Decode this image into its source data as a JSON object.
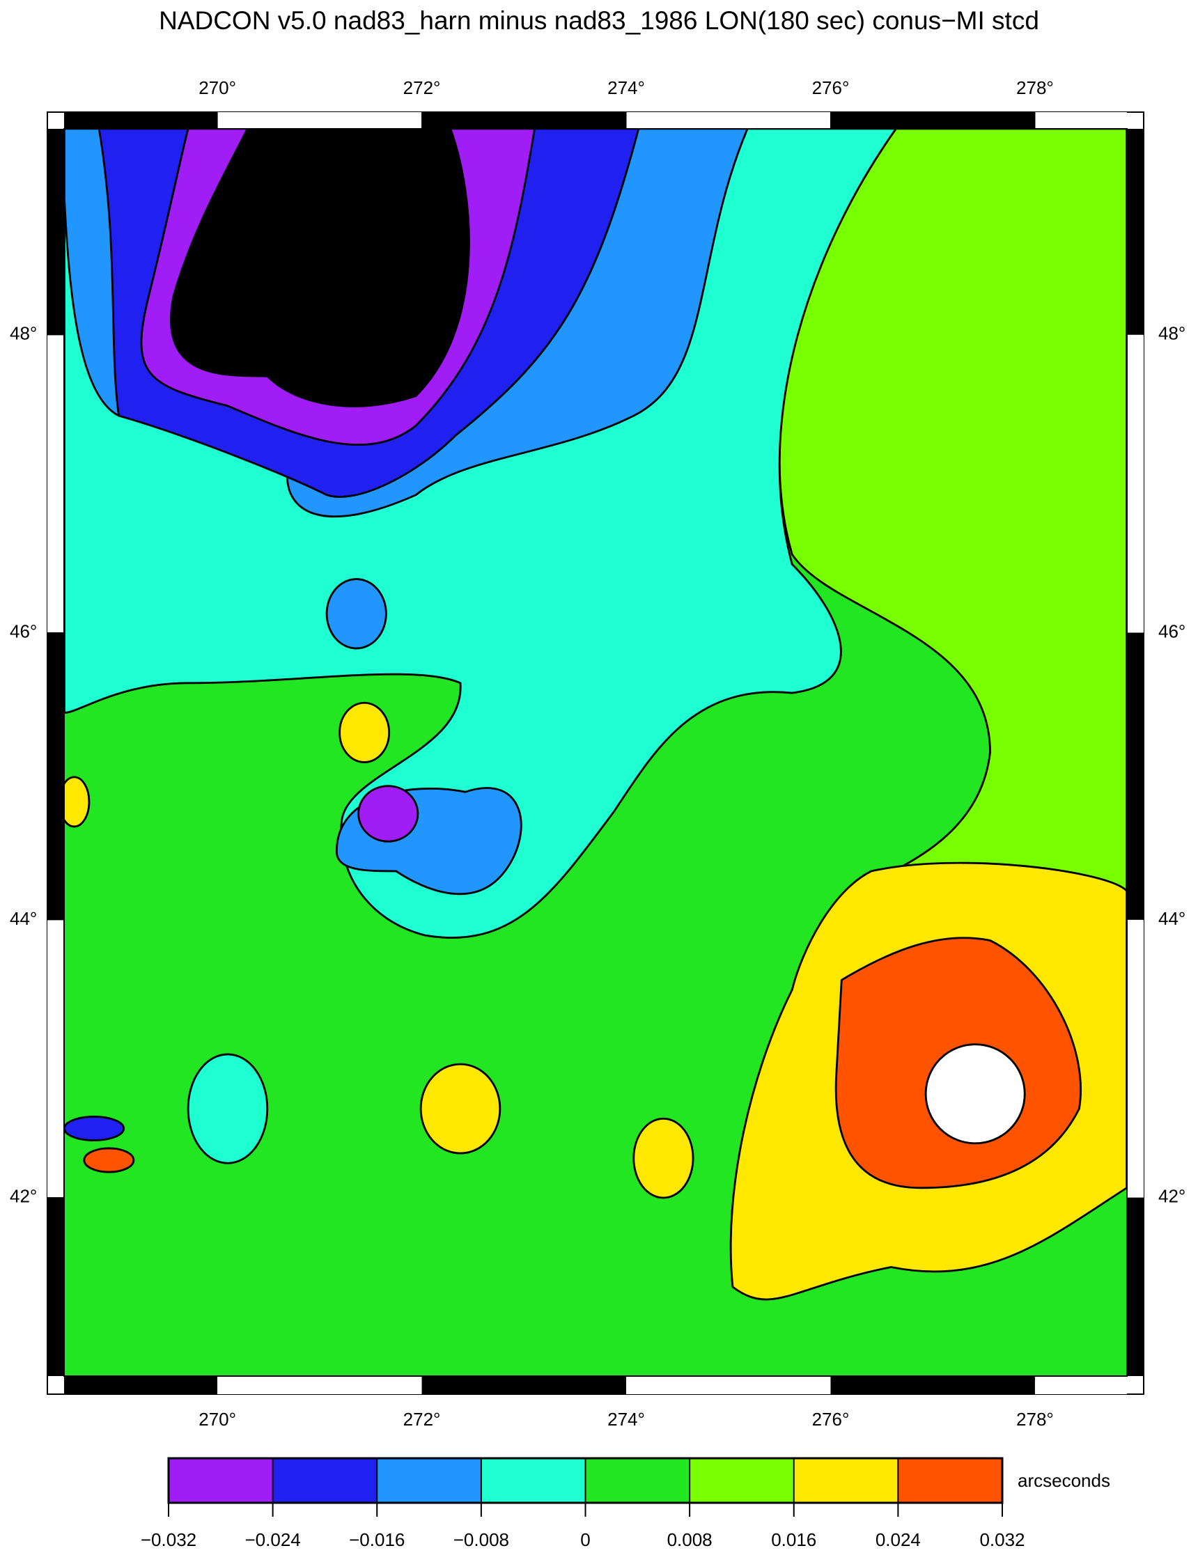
{
  "title": "NADCON v5.0 nad83_harn minus nad83_1986 LON(180 sec) conus−MI stcd",
  "map": {
    "lonlim": [
      268.5,
      278.9
    ],
    "latlim": [
      40.68,
      49.34
    ],
    "lon_ticks": [
      {
        "value": 270,
        "label": "270°"
      },
      {
        "value": 272,
        "label": "272°"
      },
      {
        "value": 274,
        "label": "274°"
      },
      {
        "value": 276,
        "label": "276°"
      },
      {
        "value": 278,
        "label": "278°"
      }
    ],
    "lat_ticks": [
      {
        "value": 48,
        "label": "48°"
      },
      {
        "value": 46,
        "label": "46°"
      },
      {
        "value": 44,
        "label": "44°"
      },
      {
        "value": 42,
        "label": "42°"
      }
    ]
  },
  "colorbar": {
    "unit_label": "arcseconds",
    "ticks": [
      {
        "value": -0.032,
        "label": "−0.032"
      },
      {
        "value": -0.024,
        "label": "−0.024"
      },
      {
        "value": -0.016,
        "label": "−0.016"
      },
      {
        "value": -0.008,
        "label": "−0.008"
      },
      0,
      0.008,
      0.016,
      0.024,
      0.032
    ],
    "colors": [
      "#a01ef5",
      "#2020f0",
      "#2196ff",
      "#1effd2",
      "#22e622",
      "#78ff00",
      "#ffe800",
      "#ff5300"
    ]
  }
}
